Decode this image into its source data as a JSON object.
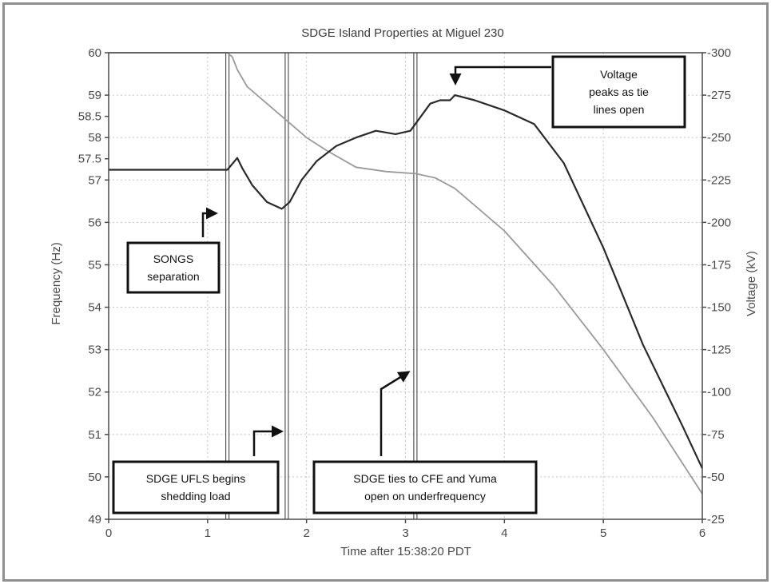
{
  "chart_data": {
    "type": "line",
    "title": "SDGE Island Properties at Miguel 230",
    "xlabel": "Time after 15:38:20 PDT",
    "ylabel_left": "Frequency (Hz)",
    "ylabel_right": "Voltage (kV)",
    "xlim": [
      0,
      6
    ],
    "ylim_left": [
      49,
      60
    ],
    "ylim_right": [
      25,
      300
    ],
    "x_ticks": [
      "0",
      "1",
      "2",
      "3",
      "4",
      "5",
      "6"
    ],
    "y_left_ticks": [
      "49",
      "50",
      "51",
      "52",
      "53",
      "54",
      "55",
      "56",
      "57",
      "57.5",
      "58",
      "58.5",
      "59",
      "60"
    ],
    "y_right_ticks": [
      "25",
      "50",
      "75",
      "100",
      "125",
      "150",
      "175",
      "200",
      "225",
      "250",
      "275",
      "300"
    ],
    "grid": true,
    "series": [
      {
        "axis": "left",
        "color": "#9a9a9a",
        "x": [
          0,
          1.2,
          1.25,
          1.3,
          1.4,
          1.6,
          1.8,
          2.0,
          2.2,
          2.5,
          2.8,
          3.1,
          3.3,
          3.5,
          4.0,
          4.5,
          5.0,
          5.5,
          6.0
        ],
        "y": [
          60,
          60,
          59.9,
          59.6,
          59.2,
          58.8,
          58.4,
          58.0,
          57.7,
          57.3,
          57.2,
          57.15,
          57.05,
          56.8,
          55.8,
          54.5,
          53.0,
          51.4,
          49.6
        ]
      },
      {
        "axis": "right",
        "color": "#2a2a2a",
        "x": [
          0,
          1.2,
          1.3,
          1.35,
          1.45,
          1.6,
          1.75,
          1.83,
          1.95,
          2.1,
          2.3,
          2.5,
          2.7,
          2.9,
          3.05,
          3.15,
          3.25,
          3.35,
          3.45,
          3.5,
          3.7,
          4.0,
          4.3,
          4.6,
          5.0,
          5.4,
          5.8,
          6.0
        ],
        "y": [
          231,
          231,
          238,
          232,
          222,
          212,
          208,
          212,
          225,
          236,
          245,
          250,
          254,
          252,
          254,
          262,
          270,
          272,
          272,
          275,
          272,
          266,
          258,
          235,
          185,
          128,
          80,
          55
        ]
      }
    ],
    "event_lines_x": [
      1.2,
      1.8,
      3.1
    ],
    "annotations": [
      {
        "id": "songs",
        "lines": [
          "SONGS",
          "separation"
        ]
      },
      {
        "id": "ufls",
        "lines": [
          "SDGE UFLS begins",
          "shedding load"
        ]
      },
      {
        "id": "ties",
        "lines": [
          "SDGE ties to CFE and Yuma",
          "open on underfrequency"
        ]
      },
      {
        "id": "voltage",
        "lines": [
          "Voltage",
          "peaks as tie",
          "lines open"
        ]
      }
    ]
  }
}
